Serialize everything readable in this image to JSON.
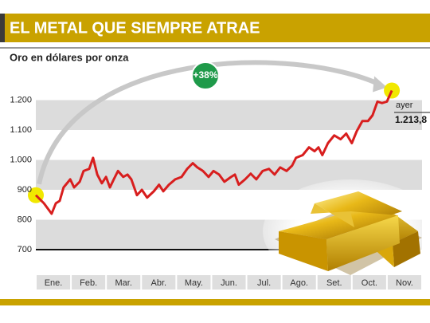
{
  "chart_data": {
    "type": "line",
    "title": "EL METAL QUE SIEMPRE ATRAE",
    "subtitle": "Oro en dólares por onza",
    "annotations": [
      {
        "text": "+38%"
      },
      {
        "text": "ayer"
      },
      {
        "text": "1.213,8"
      }
    ],
    "xlim": [
      0,
      11
    ],
    "xticks": [
      {
        "value": 0.5,
        "label": "Ene."
      },
      {
        "value": 1.5,
        "label": "Feb."
      },
      {
        "value": 2.5,
        "label": "Mar."
      },
      {
        "value": 3.5,
        "label": "Abr."
      },
      {
        "value": 4.5,
        "label": "May."
      },
      {
        "value": 5.5,
        "label": "Jun."
      },
      {
        "value": 6.5,
        "label": "Jul."
      },
      {
        "value": 7.5,
        "label": "Ago."
      },
      {
        "value": 8.5,
        "label": "Set."
      },
      {
        "value": 9.5,
        "label": "Oct."
      },
      {
        "value": 10.5,
        "label": "Nov."
      }
    ],
    "ylim": [
      700,
      1300
    ],
    "yticks": [
      700,
      800,
      900,
      {
        "value": 1000,
        "label": "1.000"
      },
      {
        "value": 1100,
        "label": "1.100"
      },
      {
        "value": 1200,
        "label": "1.200"
      }
    ],
    "grid": true,
    "x": [
      0,
      0.23,
      0.45,
      0.57,
      0.68,
      0.79,
      0.98,
      1.09,
      1.25,
      1.36,
      1.52,
      1.63,
      1.75,
      1.88,
      2.0,
      2.11,
      2.22,
      2.34,
      2.49,
      2.61,
      2.72,
      2.88,
      3.02,
      3.17,
      3.36,
      3.51,
      3.63,
      3.79,
      3.97,
      4.15,
      4.31,
      4.47,
      4.6,
      4.76,
      4.92,
      5.06,
      5.22,
      5.37,
      5.56,
      5.67,
      5.78,
      5.96,
      6.12,
      6.28,
      6.46,
      6.64,
      6.8,
      6.96,
      7.14,
      7.3,
      7.41,
      7.6,
      7.78,
      7.94,
      8.05,
      8.16,
      8.32,
      8.5,
      8.68,
      8.84,
      9.0,
      9.14,
      9.3,
      9.46,
      9.59,
      9.73,
      9.86,
      10.0,
      10.14
    ],
    "series": [
      {
        "color": "#d81e1e",
        "values": [
          882,
          855,
          820,
          855,
          863,
          908,
          935,
          908,
          927,
          963,
          970,
          1007,
          951,
          922,
          943,
          908,
          935,
          963,
          943,
          951,
          935,
          882,
          900,
          874,
          895,
          917,
          895,
          917,
          935,
          943,
          970,
          989,
          975,
          963,
          943,
          963,
          951,
          927,
          943,
          951,
          917,
          935,
          954,
          935,
          963,
          970,
          951,
          975,
          963,
          981,
          1007,
          1016,
          1042,
          1029,
          1042,
          1016,
          1056,
          1082,
          1069,
          1088,
          1056,
          1096,
          1130,
          1130,
          1149,
          1195,
          1190,
          1195,
          1232
        ]
      }
    ]
  }
}
